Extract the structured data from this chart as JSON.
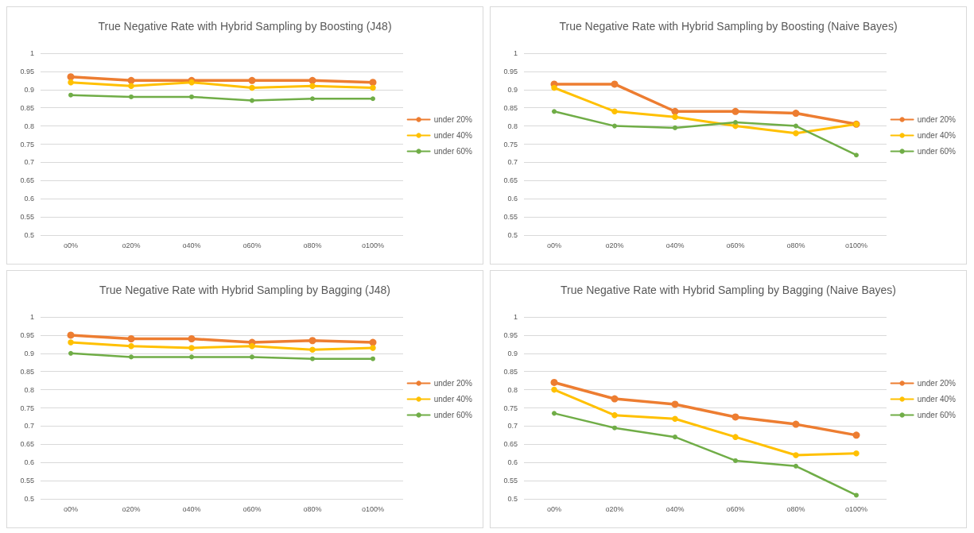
{
  "chart_data": [
    {
      "type": "line",
      "title": "True Negative Rate with Hybrid Sampling by Boosting (J48)",
      "categories": [
        "o0%",
        "o20%",
        "o40%",
        "o60%",
        "o80%",
        "o100%"
      ],
      "series": [
        {
          "name": "under 20%",
          "color": "#ed7d31",
          "values": [
            0.935,
            0.925,
            0.925,
            0.925,
            0.925,
            0.92
          ]
        },
        {
          "name": "under 40%",
          "color": "#ffc000",
          "values": [
            0.92,
            0.91,
            0.92,
            0.905,
            0.91,
            0.905
          ]
        },
        {
          "name": "under 60%",
          "color": "#70ad47",
          "values": [
            0.885,
            0.88,
            0.88,
            0.87,
            0.875,
            0.875
          ]
        }
      ],
      "ylim": [
        0.5,
        1
      ],
      "yticks": [
        0.5,
        0.55,
        0.6,
        0.65,
        0.7,
        0.75,
        0.8,
        0.85,
        0.9,
        0.95,
        1
      ],
      "grid": "y",
      "legend": "right",
      "marker": "circle",
      "line_style": "solid"
    },
    {
      "type": "line",
      "title": "True Negative Rate with Hybrid Sampling by Boosting (Naive Bayes)",
      "categories": [
        "o0%",
        "o20%",
        "o40%",
        "o60%",
        "o80%",
        "o100%"
      ],
      "series": [
        {
          "name": "under 20%",
          "color": "#ed7d31",
          "values": [
            0.915,
            0.915,
            0.84,
            0.84,
            0.835,
            0.805
          ]
        },
        {
          "name": "under 40%",
          "color": "#ffc000",
          "values": [
            0.905,
            0.84,
            0.825,
            0.8,
            0.78,
            0.805
          ]
        },
        {
          "name": "under 60%",
          "color": "#70ad47",
          "values": [
            0.84,
            0.8,
            0.795,
            0.81,
            0.8,
            0.72
          ]
        }
      ],
      "ylim": [
        0.5,
        1
      ],
      "yticks": [
        0.5,
        0.55,
        0.6,
        0.65,
        0.7,
        0.75,
        0.8,
        0.85,
        0.9,
        0.95,
        1
      ],
      "grid": "y",
      "legend": "right",
      "marker": "circle",
      "line_style": "solid"
    },
    {
      "type": "line",
      "title": "True Negative Rate with Hybrid Sampling by Bagging (J48)",
      "categories": [
        "o0%",
        "o20%",
        "o40%",
        "o60%",
        "o80%",
        "o100%"
      ],
      "series": [
        {
          "name": "under 20%",
          "color": "#ed7d31",
          "values": [
            0.95,
            0.94,
            0.94,
            0.93,
            0.935,
            0.93
          ]
        },
        {
          "name": "under 40%",
          "color": "#ffc000",
          "values": [
            0.93,
            0.92,
            0.915,
            0.92,
            0.91,
            0.915
          ]
        },
        {
          "name": "under 60%",
          "color": "#70ad47",
          "values": [
            0.9,
            0.89,
            0.89,
            0.89,
            0.885,
            0.885
          ]
        }
      ],
      "ylim": [
        0.5,
        1
      ],
      "yticks": [
        0.5,
        0.55,
        0.6,
        0.65,
        0.7,
        0.75,
        0.8,
        0.85,
        0.9,
        0.95,
        1
      ],
      "grid": "y",
      "legend": "right",
      "marker": "circle",
      "line_style": "solid"
    },
    {
      "type": "line",
      "title": "True Negative Rate with Hybrid Sampling by Bagging (Naive Bayes)",
      "categories": [
        "o0%",
        "o20%",
        "o40%",
        "o60%",
        "o80%",
        "o100%"
      ],
      "series": [
        {
          "name": "under 20%",
          "color": "#ed7d31",
          "values": [
            0.82,
            0.775,
            0.76,
            0.725,
            0.705,
            0.675
          ]
        },
        {
          "name": "under 40%",
          "color": "#ffc000",
          "values": [
            0.8,
            0.73,
            0.72,
            0.67,
            0.62,
            0.625
          ]
        },
        {
          "name": "under 60%",
          "color": "#70ad47",
          "values": [
            0.735,
            0.695,
            0.67,
            0.605,
            0.59,
            0.51
          ]
        }
      ],
      "ylim": [
        0.5,
        1
      ],
      "yticks": [
        0.5,
        0.55,
        0.6,
        0.65,
        0.7,
        0.75,
        0.8,
        0.85,
        0.9,
        0.95,
        1
      ],
      "grid": "y",
      "legend": "right",
      "marker": "circle",
      "line_style": "solid"
    }
  ]
}
